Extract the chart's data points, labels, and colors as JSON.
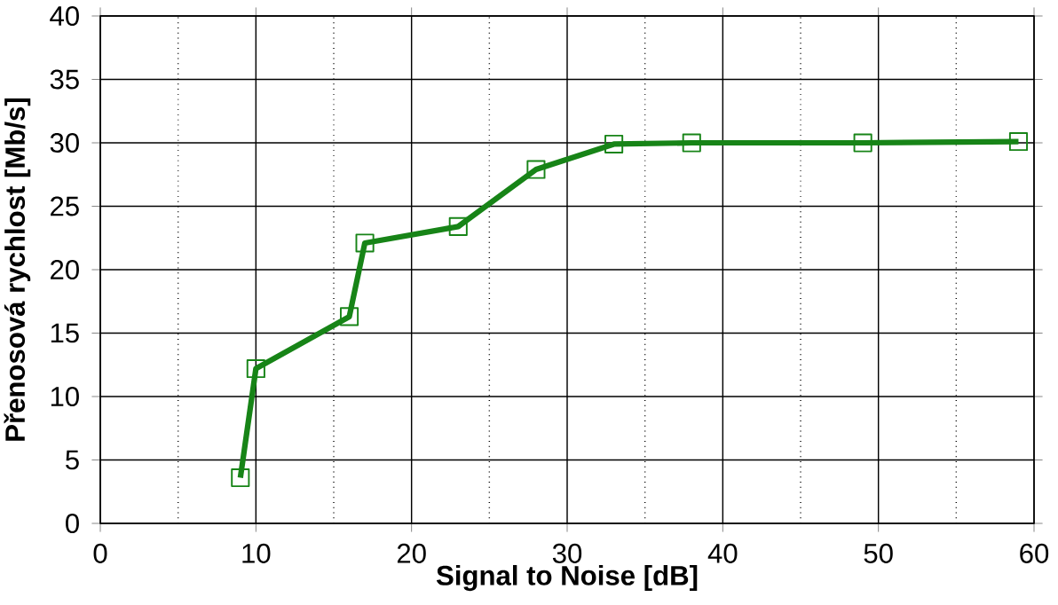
{
  "chart_data": {
    "type": "line",
    "xlabel": "Signal to Noise [dB]",
    "ylabel": "Přenosová rychlost [Mb/s]",
    "x": [
      9,
      10,
      16,
      17,
      23,
      28,
      33,
      38,
      49,
      59
    ],
    "series": [
      {
        "color": "#178417",
        "values": [
          3.6,
          12.2,
          16.3,
          22.1,
          23.4,
          27.9,
          29.9,
          30.0,
          30.0,
          30.1
        ]
      }
    ],
    "xlim": [
      0,
      60
    ],
    "ylim": [
      0,
      40
    ],
    "xticks": [
      0,
      10,
      20,
      30,
      40,
      50,
      60
    ],
    "yticks": [
      0,
      5,
      10,
      15,
      20,
      25,
      30,
      35,
      40
    ],
    "grid": true,
    "marker": "square",
    "line_style": "solid"
  }
}
